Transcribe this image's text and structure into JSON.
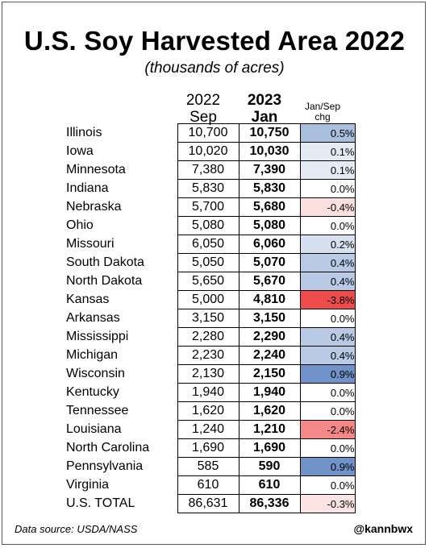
{
  "title": "U.S. Soy Harvested Area 2022",
  "subtitle": "(thousands of acres)",
  "columns": {
    "sep_year": "2022",
    "sep_month": "Sep",
    "jan_year": "2023",
    "jan_month": "Jan",
    "chg_line1": "Jan/Sep",
    "chg_line2": "chg"
  },
  "footer": {
    "source": "Data source: USDA/NASS",
    "handle": "@kannbwx"
  },
  "colors": {
    "positive": "#6f93c8",
    "negative": "#ee4b4b"
  },
  "chart_data": {
    "type": "table",
    "title": "U.S. Soy Harvested Area 2022",
    "subtitle": "(thousands of acres)",
    "columns": [
      "2022 Sep",
      "2023 Jan",
      "Jan/Sep chg"
    ],
    "rows": [
      {
        "state": "Illinois",
        "sep": "10,700",
        "jan": "10,750",
        "chg": "0.5%",
        "chg_value": 0.5
      },
      {
        "state": "Iowa",
        "sep": "10,020",
        "jan": "10,030",
        "chg": "0.1%",
        "chg_value": 0.1
      },
      {
        "state": "Minnesota",
        "sep": "7,380",
        "jan": "7,390",
        "chg": "0.1%",
        "chg_value": 0.1
      },
      {
        "state": "Indiana",
        "sep": "5,830",
        "jan": "5,830",
        "chg": "0.0%",
        "chg_value": 0.0
      },
      {
        "state": "Nebraska",
        "sep": "5,700",
        "jan": "5,680",
        "chg": "-0.4%",
        "chg_value": -0.4
      },
      {
        "state": "Ohio",
        "sep": "5,080",
        "jan": "5,080",
        "chg": "0.0%",
        "chg_value": 0.0
      },
      {
        "state": "Missouri",
        "sep": "6,050",
        "jan": "6,060",
        "chg": "0.2%",
        "chg_value": 0.2
      },
      {
        "state": "South Dakota",
        "sep": "5,050",
        "jan": "5,070",
        "chg": "0.4%",
        "chg_value": 0.4
      },
      {
        "state": "North Dakota",
        "sep": "5,650",
        "jan": "5,670",
        "chg": "0.4%",
        "chg_value": 0.4
      },
      {
        "state": "Kansas",
        "sep": "5,000",
        "jan": "4,810",
        "chg": "-3.8%",
        "chg_value": -3.8
      },
      {
        "state": "Arkansas",
        "sep": "3,150",
        "jan": "3,150",
        "chg": "0.0%",
        "chg_value": 0.0
      },
      {
        "state": "Mississippi",
        "sep": "2,280",
        "jan": "2,290",
        "chg": "0.4%",
        "chg_value": 0.4
      },
      {
        "state": "Michigan",
        "sep": "2,230",
        "jan": "2,240",
        "chg": "0.4%",
        "chg_value": 0.4
      },
      {
        "state": "Wisconsin",
        "sep": "2,130",
        "jan": "2,150",
        "chg": "0.9%",
        "chg_value": 0.9
      },
      {
        "state": "Kentucky",
        "sep": "1,940",
        "jan": "1,940",
        "chg": "0.0%",
        "chg_value": 0.0
      },
      {
        "state": "Tennessee",
        "sep": "1,620",
        "jan": "1,620",
        "chg": "0.0%",
        "chg_value": 0.0
      },
      {
        "state": "Louisiana",
        "sep": "1,240",
        "jan": "1,210",
        "chg": "-2.4%",
        "chg_value": -2.4
      },
      {
        "state": "North Carolina",
        "sep": "1,690",
        "jan": "1,690",
        "chg": "0.0%",
        "chg_value": 0.0
      },
      {
        "state": "Pennsylvania",
        "sep": "585",
        "jan": "590",
        "chg": "0.9%",
        "chg_value": 0.9
      },
      {
        "state": "Virginia",
        "sep": "610",
        "jan": "610",
        "chg": "0.0%",
        "chg_value": 0.0
      },
      {
        "state": "U.S. TOTAL",
        "sep": "86,631",
        "jan": "86,336",
        "chg": "-0.3%",
        "chg_value": -0.3
      }
    ]
  }
}
